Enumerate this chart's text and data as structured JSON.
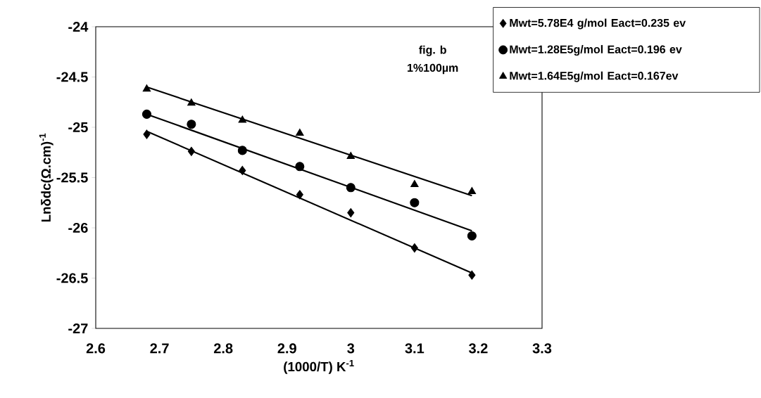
{
  "chart_data": {
    "type": "scatter",
    "xlabel": "(1000/T) K$^{-1}$",
    "ylabel": "Lnδdc(Ω.cm)$^{-1}$",
    "annotations": [
      "fig. b",
      "1%100µm"
    ],
    "xlim": [
      2.6,
      3.3
    ],
    "xticks": [
      2.6,
      2.7,
      2.8,
      2.9,
      3,
      3.1,
      3.2,
      3.3
    ],
    "ylim": [
      -27,
      -24
    ],
    "yticks": [
      -27,
      -26.5,
      -26,
      -25.5,
      -25,
      -24.5,
      -24
    ],
    "grid": false,
    "legend": "top right",
    "series": [
      {
        "name": "Mwt=5.78E4 g/mol   Eact=0.235 ev",
        "marker": "diamond",
        "color": "#000000",
        "x": [
          2.68,
          2.75,
          2.83,
          2.92,
          3.0,
          3.1,
          3.19
        ],
        "values": [
          -25.07,
          -25.24,
          -25.43,
          -25.67,
          -25.85,
          -26.2,
          -26.47
        ]
      },
      {
        "name": "Mwt=1.28E5g/mol   Eact=0.196 ev",
        "marker": "circle",
        "color": "#000000",
        "x": [
          2.68,
          2.75,
          2.83,
          2.92,
          3.0,
          3.1,
          3.19
        ],
        "values": [
          -24.87,
          -24.97,
          -25.23,
          -25.39,
          -25.6,
          -25.75,
          -26.08
        ]
      },
      {
        "name": "Mwt=1.64E5g/mol   Eact=0.167ev",
        "marker": "triangle",
        "color": "#000000",
        "x": [
          2.68,
          2.75,
          2.83,
          2.92,
          3.0,
          3.1,
          3.19
        ],
        "values": [
          -24.62,
          -24.76,
          -24.93,
          -25.06,
          -25.29,
          -25.57,
          -25.64
        ]
      },
      {
        "type": "line",
        "marker": "none",
        "color": "#000000",
        "x": [
          2.68,
          3.19
        ],
        "values": [
          -25.04,
          -26.45
        ]
      },
      {
        "type": "line",
        "marker": "none",
        "color": "#000000",
        "x": [
          2.68,
          3.19
        ],
        "values": [
          -24.87,
          -26.03
        ]
      },
      {
        "type": "line",
        "marker": "none",
        "color": "#000000",
        "x": [
          2.68,
          3.19
        ],
        "values": [
          -24.6,
          -25.68
        ]
      }
    ]
  }
}
